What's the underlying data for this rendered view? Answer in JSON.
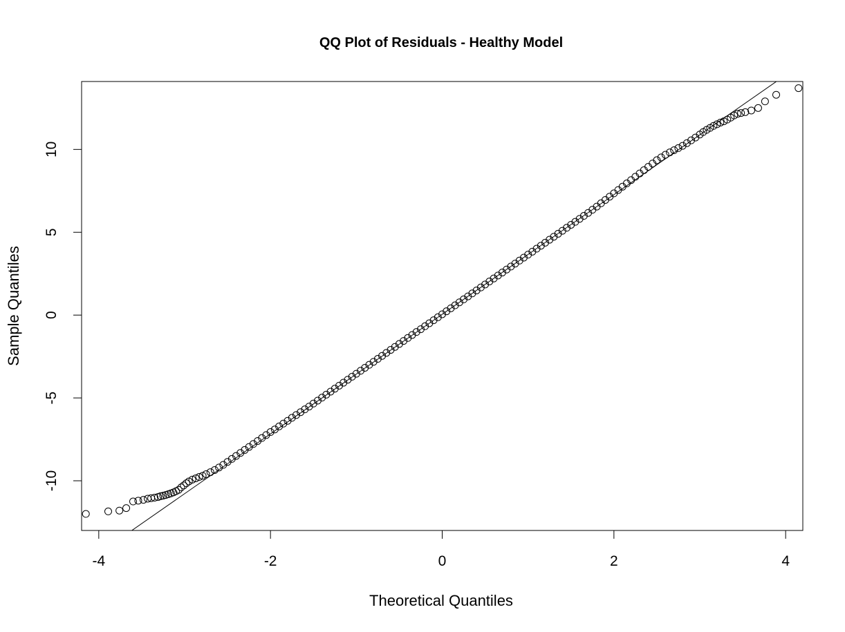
{
  "chart_data": {
    "type": "scatter",
    "title": "QQ Plot of Residuals - Healthy Model",
    "xlabel": "Theoretical Quantiles",
    "ylabel": "Sample Quantiles",
    "xlim": [
      -4.2,
      4.2
    ],
    "ylim": [
      -13,
      14.1
    ],
    "xticks": [
      -4,
      -2,
      0,
      2,
      4
    ],
    "yticks": [
      -10,
      -5,
      0,
      5,
      10
    ],
    "xtick_labels": [
      "-4",
      "-2",
      "0",
      "2",
      "4"
    ],
    "ytick_labels": [
      "-10",
      "-5",
      "0",
      "5",
      "10"
    ],
    "grid": false,
    "reference_line": {
      "intercept": 0.05,
      "slope": 3.61
    },
    "series": [
      {
        "marker": "open-circle",
        "color": "#000000",
        "points": [
          [
            -4.15,
            -12.0
          ],
          [
            -3.89,
            -11.85
          ],
          [
            -3.76,
            -11.8
          ],
          [
            -3.68,
            -11.65
          ],
          [
            -3.6,
            -11.25
          ],
          [
            -3.54,
            -11.2
          ],
          [
            -3.48,
            -11.15
          ],
          [
            -3.43,
            -11.08
          ],
          [
            -3.39,
            -11.05
          ],
          [
            -3.35,
            -11.02
          ],
          [
            -3.31,
            -10.98
          ],
          [
            -3.28,
            -10.93
          ],
          [
            -3.25,
            -10.9
          ],
          [
            -3.22,
            -10.86
          ],
          [
            -3.19,
            -10.81
          ],
          [
            -3.16,
            -10.76
          ],
          [
            -3.13,
            -10.7
          ],
          [
            -3.1,
            -10.63
          ],
          [
            -3.07,
            -10.55
          ],
          [
            -3.04,
            -10.4
          ],
          [
            -3.01,
            -10.28
          ],
          [
            -2.98,
            -10.15
          ],
          [
            -2.95,
            -10.04
          ],
          [
            -2.91,
            -9.93
          ],
          [
            -2.87,
            -9.85
          ],
          [
            -2.83,
            -9.77
          ],
          [
            -2.79,
            -9.7
          ],
          [
            -2.75,
            -9.6
          ],
          [
            -2.7,
            -9.48
          ],
          [
            -2.65,
            -9.35
          ],
          [
            -2.6,
            -9.2
          ],
          [
            -2.55,
            -9.04
          ],
          [
            -2.5,
            -8.86
          ],
          [
            -2.45,
            -8.68
          ],
          [
            -2.4,
            -8.5
          ],
          [
            -2.35,
            -8.32
          ],
          [
            -2.3,
            -8.14
          ],
          [
            -2.25,
            -7.96
          ],
          [
            -2.2,
            -7.78
          ],
          [
            -2.15,
            -7.6
          ],
          [
            -2.1,
            -7.42
          ],
          [
            -2.05,
            -7.24
          ],
          [
            -2.0,
            -7.06
          ],
          [
            -1.95,
            -6.9
          ],
          [
            -1.9,
            -6.72
          ],
          [
            -1.85,
            -6.55
          ],
          [
            -1.8,
            -6.38
          ],
          [
            -1.75,
            -6.2
          ],
          [
            -1.7,
            -6.03
          ],
          [
            -1.65,
            -5.86
          ],
          [
            -1.6,
            -5.69
          ],
          [
            -1.55,
            -5.52
          ],
          [
            -1.5,
            -5.34
          ],
          [
            -1.45,
            -5.16
          ],
          [
            -1.4,
            -4.98
          ],
          [
            -1.35,
            -4.8
          ],
          [
            -1.3,
            -4.62
          ],
          [
            -1.25,
            -4.44
          ],
          [
            -1.2,
            -4.26
          ],
          [
            -1.15,
            -4.08
          ],
          [
            -1.1,
            -3.9
          ],
          [
            -1.05,
            -3.72
          ],
          [
            -1.0,
            -3.54
          ],
          [
            -0.95,
            -3.36
          ],
          [
            -0.9,
            -3.18
          ],
          [
            -0.85,
            -3.0
          ],
          [
            -0.8,
            -2.82
          ],
          [
            -0.75,
            -2.64
          ],
          [
            -0.7,
            -2.46
          ],
          [
            -0.65,
            -2.28
          ],
          [
            -0.6,
            -2.1
          ],
          [
            -0.55,
            -1.92
          ],
          [
            -0.5,
            -1.74
          ],
          [
            -0.45,
            -1.56
          ],
          [
            -0.4,
            -1.38
          ],
          [
            -0.35,
            -1.2
          ],
          [
            -0.3,
            -1.02
          ],
          [
            -0.25,
            -0.85
          ],
          [
            -0.2,
            -0.67
          ],
          [
            -0.15,
            -0.49
          ],
          [
            -0.1,
            -0.31
          ],
          [
            -0.05,
            -0.13
          ],
          [
            0.0,
            0.05
          ],
          [
            0.05,
            0.23
          ],
          [
            0.1,
            0.41
          ],
          [
            0.15,
            0.59
          ],
          [
            0.2,
            0.77
          ],
          [
            0.25,
            0.95
          ],
          [
            0.3,
            1.13
          ],
          [
            0.35,
            1.31
          ],
          [
            0.4,
            1.49
          ],
          [
            0.45,
            1.67
          ],
          [
            0.5,
            1.85
          ],
          [
            0.55,
            2.03
          ],
          [
            0.6,
            2.21
          ],
          [
            0.65,
            2.39
          ],
          [
            0.7,
            2.57
          ],
          [
            0.75,
            2.75
          ],
          [
            0.8,
            2.93
          ],
          [
            0.85,
            3.11
          ],
          [
            0.9,
            3.29
          ],
          [
            0.95,
            3.47
          ],
          [
            1.0,
            3.65
          ],
          [
            1.05,
            3.83
          ],
          [
            1.1,
            4.01
          ],
          [
            1.15,
            4.19
          ],
          [
            1.2,
            4.37
          ],
          [
            1.25,
            4.55
          ],
          [
            1.3,
            4.73
          ],
          [
            1.35,
            4.91
          ],
          [
            1.4,
            5.09
          ],
          [
            1.45,
            5.27
          ],
          [
            1.5,
            5.45
          ],
          [
            1.55,
            5.63
          ],
          [
            1.6,
            5.81
          ],
          [
            1.65,
            5.99
          ],
          [
            1.7,
            6.17
          ],
          [
            1.75,
            6.36
          ],
          [
            1.8,
            6.55
          ],
          [
            1.85,
            6.75
          ],
          [
            1.9,
            6.95
          ],
          [
            1.95,
            7.15
          ],
          [
            2.0,
            7.35
          ],
          [
            2.05,
            7.55
          ],
          [
            2.1,
            7.75
          ],
          [
            2.15,
            7.95
          ],
          [
            2.2,
            8.15
          ],
          [
            2.25,
            8.35
          ],
          [
            2.3,
            8.55
          ],
          [
            2.35,
            8.75
          ],
          [
            2.4,
            8.95
          ],
          [
            2.45,
            9.15
          ],
          [
            2.5,
            9.35
          ],
          [
            2.55,
            9.52
          ],
          [
            2.6,
            9.68
          ],
          [
            2.65,
            9.82
          ],
          [
            2.7,
            9.95
          ],
          [
            2.75,
            10.08
          ],
          [
            2.8,
            10.22
          ],
          [
            2.85,
            10.38
          ],
          [
            2.9,
            10.55
          ],
          [
            2.95,
            10.72
          ],
          [
            3.0,
            10.9
          ],
          [
            3.04,
            11.05
          ],
          [
            3.08,
            11.18
          ],
          [
            3.12,
            11.3
          ],
          [
            3.16,
            11.42
          ],
          [
            3.2,
            11.52
          ],
          [
            3.24,
            11.62
          ],
          [
            3.28,
            11.7
          ],
          [
            3.32,
            11.8
          ],
          [
            3.36,
            11.92
          ],
          [
            3.4,
            12.05
          ],
          [
            3.44,
            12.15
          ],
          [
            3.48,
            12.2
          ],
          [
            3.53,
            12.25
          ],
          [
            3.6,
            12.35
          ],
          [
            3.68,
            12.5
          ],
          [
            3.76,
            12.9
          ],
          [
            3.89,
            13.3
          ],
          [
            4.15,
            13.7
          ]
        ]
      }
    ]
  }
}
